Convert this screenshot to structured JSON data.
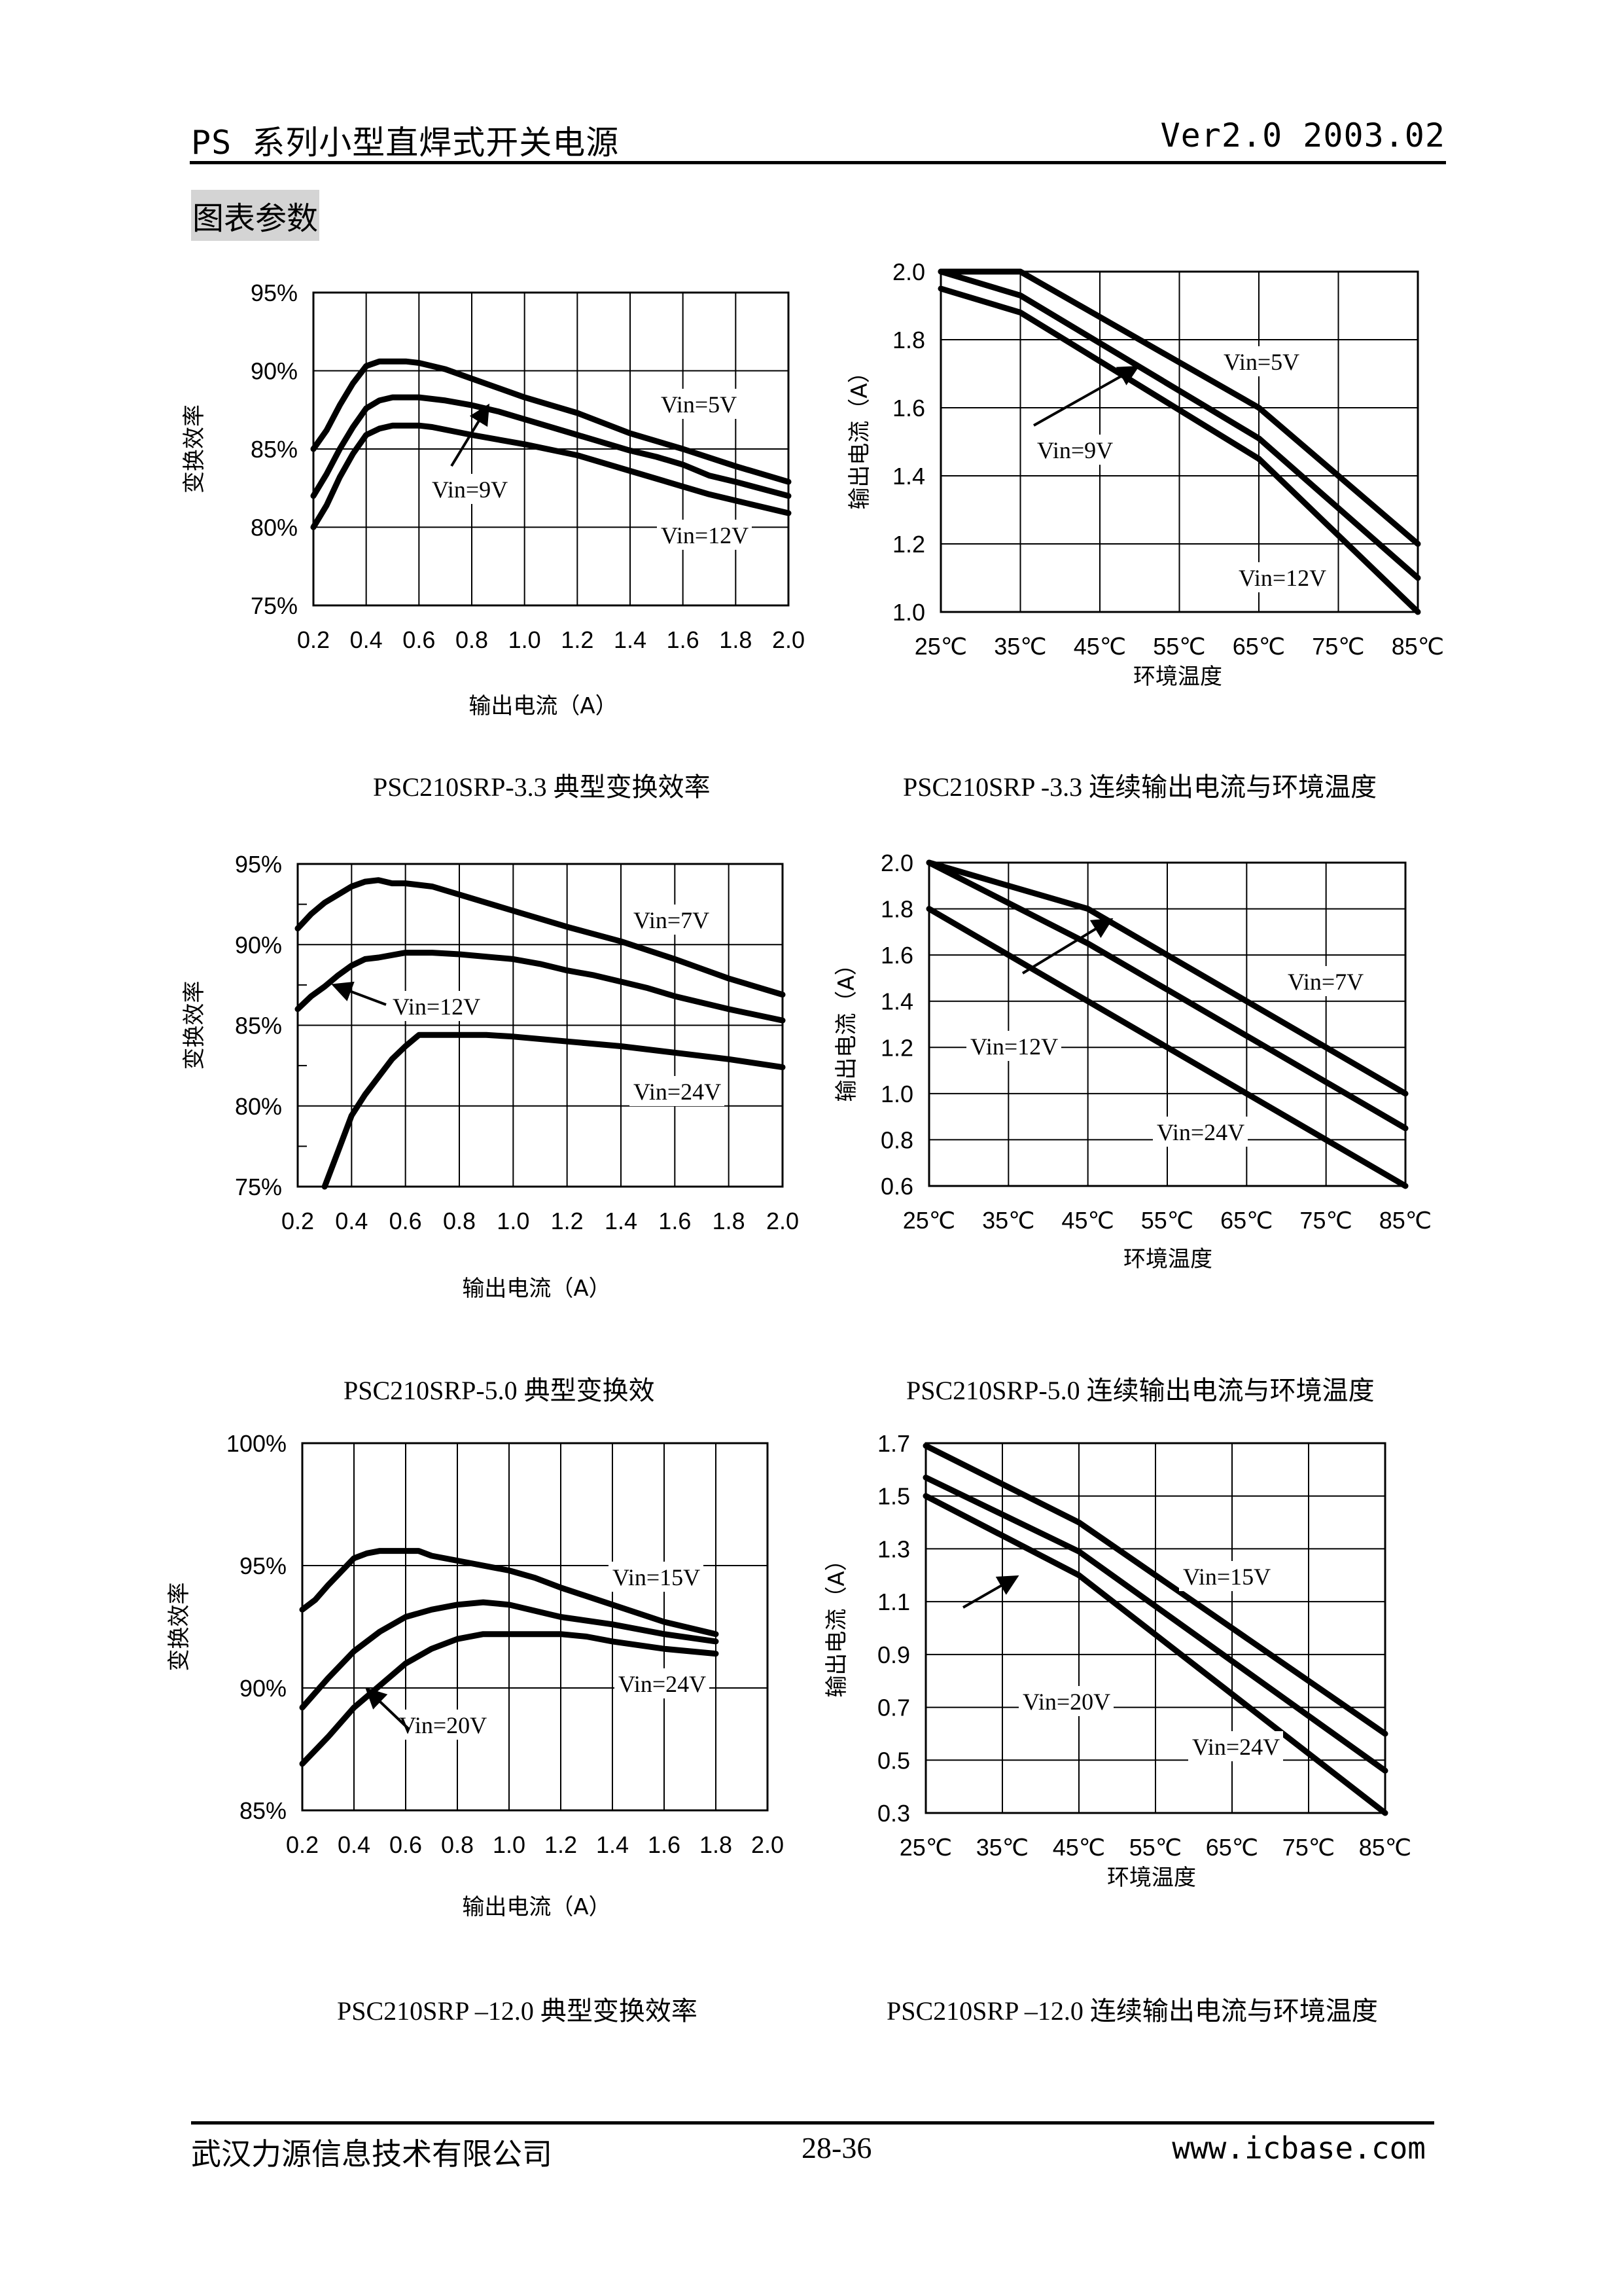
{
  "header": {
    "title": "PS 系列小型直焊式开关电源",
    "version": "Ver2.0 2003.02"
  },
  "section_title": "图表参数",
  "footer": {
    "company": "武汉力源信息技术有限公司",
    "page": "28-36",
    "website": "www.icbase.com"
  },
  "chart_data": [
    {
      "id": "eff-3v3",
      "type": "line",
      "title": "PSC210SRP-3.3 典型变换效率",
      "xlabel": "输出电流（A）",
      "ylabel": "变换效率",
      "xlim": [
        0.2,
        2.0
      ],
      "ylim": [
        75,
        95
      ],
      "xticks": [
        "0.2",
        "0.4",
        "0.6",
        "0.8",
        "1.0",
        "1.2",
        "1.4",
        "1.6",
        "1.8",
        "2.0"
      ],
      "yticks": [
        "75%",
        "80%",
        "85%",
        "90%",
        "95%"
      ],
      "grid": true,
      "series": [
        {
          "name": "Vin=5V",
          "x": [
            0.2,
            0.25,
            0.3,
            0.35,
            0.4,
            0.45,
            0.5,
            0.55,
            0.6,
            0.7,
            0.8,
            1.0,
            1.1,
            1.2,
            1.4,
            1.6,
            1.8,
            2.0
          ],
          "y": [
            85.0,
            86.2,
            87.8,
            89.2,
            90.3,
            90.6,
            90.6,
            90.6,
            90.5,
            90.1,
            89.5,
            88.3,
            87.8,
            87.3,
            86.0,
            85.0,
            83.9,
            82.9
          ]
        },
        {
          "name": "Vin=9V",
          "x": [
            0.2,
            0.25,
            0.3,
            0.35,
            0.4,
            0.45,
            0.5,
            0.6,
            0.7,
            0.8,
            0.9,
            1.0,
            1.2,
            1.4,
            1.5,
            1.6,
            1.7,
            1.8,
            2.0
          ],
          "y": [
            82.0,
            83.4,
            85.0,
            86.4,
            87.6,
            88.1,
            88.3,
            88.3,
            88.1,
            87.8,
            87.4,
            86.9,
            85.9,
            84.9,
            84.5,
            84.0,
            83.3,
            82.9,
            82.0
          ]
        },
        {
          "name": "Vin=12V",
          "x": [
            0.2,
            0.25,
            0.3,
            0.35,
            0.4,
            0.45,
            0.5,
            0.6,
            0.65,
            0.8,
            1.0,
            1.2,
            1.4,
            1.6,
            1.7,
            1.8,
            2.0
          ],
          "y": [
            80.0,
            81.4,
            83.2,
            84.7,
            85.9,
            86.3,
            86.5,
            86.5,
            86.4,
            85.9,
            85.3,
            84.6,
            83.6,
            82.6,
            82.1,
            81.7,
            80.9
          ]
        }
      ],
      "annotations": [
        {
          "text": "Vin=5V",
          "target": "Vin=5V"
        },
        {
          "text": "Vin=9V",
          "target": "Vin=9V",
          "arrow": true
        },
        {
          "text": "Vin=12V",
          "target": "Vin=12V"
        }
      ]
    },
    {
      "id": "derate-3v3",
      "type": "line",
      "title": "PSC210SRP -3.3 连续输出电流与环境温度",
      "xlabel": "环境温度",
      "ylabel": "输出电流（A）",
      "xlim": [
        25,
        85
      ],
      "ylim": [
        1.0,
        2.0
      ],
      "xticks": [
        "25℃",
        "35℃",
        "45℃",
        "55℃",
        "65℃",
        "75℃",
        "85℃"
      ],
      "yticks": [
        "1.0",
        "1.2",
        "1.4",
        "1.6",
        "1.8",
        "2.0"
      ],
      "grid": true,
      "series": [
        {
          "name": "Vin=5V",
          "x": [
            25,
            35,
            65,
            85
          ],
          "y": [
            2.0,
            2.0,
            1.6,
            1.2
          ]
        },
        {
          "name": "Vin=9V",
          "x": [
            25,
            35,
            65,
            85
          ],
          "y": [
            2.0,
            1.93,
            1.51,
            1.1
          ]
        },
        {
          "name": "Vin=12V",
          "x": [
            25,
            35,
            65,
            85
          ],
          "y": [
            1.95,
            1.88,
            1.45,
            1.0
          ]
        }
      ],
      "annotations": [
        {
          "text": "Vin=5V",
          "target": "Vin=5V"
        },
        {
          "text": "Vin=9V",
          "target": "Vin=9V",
          "arrow": true
        },
        {
          "text": "Vin=12V",
          "target": "Vin=12V"
        }
      ]
    },
    {
      "id": "eff-5v0",
      "type": "line",
      "title": "PSC210SRP-5.0  典型变换效",
      "xlabel": "输出电流（A）",
      "ylabel": "变换效率",
      "xlim": [
        0.2,
        2.0
      ],
      "ylim": [
        75,
        95
      ],
      "xticks": [
        "0.2",
        "0.4",
        "0.6",
        "0.8",
        "1.0",
        "1.2",
        "1.4",
        "1.6",
        "1.8",
        "2.0"
      ],
      "yticks": [
        "75%",
        "80%",
        "85%",
        "90%",
        "95%"
      ],
      "grid": true,
      "series": [
        {
          "name": "Vin=7V",
          "x": [
            0.2,
            0.25,
            0.3,
            0.4,
            0.45,
            0.5,
            0.55,
            0.6,
            0.7,
            0.8,
            0.9,
            1.0,
            1.2,
            1.4,
            1.6,
            1.7,
            1.8,
            2.0
          ],
          "y": [
            91.0,
            91.9,
            92.6,
            93.6,
            93.9,
            94.0,
            93.8,
            93.8,
            93.6,
            93.1,
            92.6,
            92.1,
            91.1,
            90.2,
            89.1,
            88.5,
            87.9,
            86.9
          ]
        },
        {
          "name": "Vin=12V",
          "x": [
            0.2,
            0.25,
            0.3,
            0.35,
            0.4,
            0.45,
            0.5,
            0.6,
            0.7,
            0.8,
            1.0,
            1.1,
            1.2,
            1.3,
            1.4,
            1.5,
            1.6,
            1.8,
            2.0
          ],
          "y": [
            86.0,
            86.8,
            87.4,
            88.1,
            88.7,
            89.1,
            89.2,
            89.5,
            89.5,
            89.4,
            89.1,
            88.8,
            88.4,
            88.1,
            87.7,
            87.3,
            86.8,
            86.0,
            85.3
          ]
        },
        {
          "name": "Vin=24V",
          "x": [
            0.3,
            0.35,
            0.4,
            0.45,
            0.5,
            0.55,
            0.6,
            0.65,
            0.7,
            0.9,
            1.0,
            1.2,
            1.4,
            1.6,
            1.8,
            2.0
          ],
          "y": [
            75.0,
            77.2,
            79.4,
            80.7,
            81.8,
            82.9,
            83.7,
            84.4,
            84.4,
            84.4,
            84.3,
            84.0,
            83.7,
            83.3,
            82.9,
            82.4
          ]
        }
      ],
      "annotations": [
        {
          "text": "Vin=7V",
          "target": "Vin=7V"
        },
        {
          "text": "Vin=12V",
          "target": "Vin=12V",
          "arrow": true
        },
        {
          "text": "Vin=24V",
          "target": "Vin=24V"
        }
      ]
    },
    {
      "id": "derate-5v0",
      "type": "line",
      "title": "PSC210SRP-5.0 连续输出电流与环境温度",
      "xlabel": "环境温度",
      "ylabel": "输出电流（A）",
      "xlim": [
        25,
        85
      ],
      "ylim": [
        0.6,
        2.0
      ],
      "xticks": [
        "25℃",
        "35℃",
        "45℃",
        "55℃",
        "65℃",
        "75℃",
        "85℃"
      ],
      "yticks": [
        "0.6",
        "0.8",
        "1.0",
        "1.2",
        "1.4",
        "1.6",
        "1.8",
        "2.0"
      ],
      "grid": true,
      "series": [
        {
          "name": "Vin=7V",
          "x": [
            25,
            45,
            85
          ],
          "y": [
            2.0,
            1.8,
            1.0
          ]
        },
        {
          "name": "Vin=12V",
          "x": [
            25,
            45,
            85
          ],
          "y": [
            2.0,
            1.65,
            0.85
          ]
        },
        {
          "name": "Vin=24V",
          "x": [
            25,
            85
          ],
          "y": [
            1.8,
            0.6
          ]
        }
      ],
      "annotations": [
        {
          "text": "Vin=7V",
          "target": "Vin=7V"
        },
        {
          "text": "Vin=12V",
          "target": "Vin=12V",
          "arrow": true
        },
        {
          "text": "Vin=24V",
          "target": "Vin=24V"
        }
      ]
    },
    {
      "id": "eff-12v0",
      "type": "line",
      "title": "PSC210SRP –12.0 典型变换效率",
      "xlabel": "输出电流（A）",
      "ylabel": "变换效率",
      "xlim": [
        0.2,
        2.0
      ],
      "ylim": [
        85,
        100
      ],
      "xticks": [
        "0.2",
        "0.4",
        "0.6",
        "0.8",
        "1.0",
        "1.2",
        "1.4",
        "1.6",
        "1.8",
        "2.0"
      ],
      "yticks": [
        "85%",
        "90%",
        "95%",
        "100%"
      ],
      "grid": true,
      "series": [
        {
          "name": "Vin=15V",
          "x": [
            0.2,
            0.25,
            0.3,
            0.4,
            0.45,
            0.5,
            0.6,
            0.65,
            0.7,
            0.8,
            1.0,
            1.1,
            1.2,
            1.4,
            1.6,
            1.8
          ],
          "y": [
            93.2,
            93.6,
            94.2,
            95.3,
            95.5,
            95.6,
            95.6,
            95.6,
            95.4,
            95.2,
            94.8,
            94.5,
            94.1,
            93.4,
            92.7,
            92.2
          ]
        },
        {
          "name": "Vin=20V",
          "x": [
            0.2,
            0.3,
            0.4,
            0.5,
            0.6,
            0.7,
            0.8,
            0.9,
            1.0,
            1.2,
            1.4,
            1.6,
            1.8
          ],
          "y": [
            89.2,
            90.4,
            91.5,
            92.3,
            92.9,
            93.2,
            93.4,
            93.5,
            93.4,
            92.9,
            92.6,
            92.2,
            91.9
          ]
        },
        {
          "name": "Vin=24V",
          "x": [
            0.2,
            0.3,
            0.4,
            0.5,
            0.6,
            0.7,
            0.8,
            0.9,
            1.0,
            1.2,
            1.3,
            1.4,
            1.6,
            1.8
          ],
          "y": [
            86.9,
            88.0,
            89.2,
            90.1,
            91.0,
            91.6,
            92.0,
            92.2,
            92.2,
            92.2,
            92.1,
            91.9,
            91.6,
            91.4
          ]
        }
      ],
      "annotations": [
        {
          "text": "Vin=15V",
          "target": "Vin=15V"
        },
        {
          "text": "Vin=20V",
          "target": "Vin=20V",
          "arrow": true
        },
        {
          "text": "Vin=24V",
          "target": "Vin=24V"
        }
      ]
    },
    {
      "id": "derate-12v0",
      "type": "line",
      "title": "PSC210SRP –12.0 连续输出电流与环境温度",
      "xlabel": "环境温度",
      "ylabel": "输出电流（A）",
      "xlim": [
        25,
        85
      ],
      "ylim": [
        0.3,
        1.7
      ],
      "xticks": [
        "25℃",
        "35℃",
        "45℃",
        "55℃",
        "65℃",
        "75℃",
        "85℃"
      ],
      "yticks": [
        "0.3",
        "0.5",
        "0.7",
        "0.9",
        "1.1",
        "1.3",
        "1.5",
        "1.7"
      ],
      "grid": true,
      "series": [
        {
          "name": "Vin=15V",
          "x": [
            25,
            45,
            85
          ],
          "y": [
            1.69,
            1.4,
            0.6
          ]
        },
        {
          "name": "Vin=20V",
          "x": [
            25,
            45,
            85
          ],
          "y": [
            1.57,
            1.29,
            0.46
          ]
        },
        {
          "name": "Vin=24V",
          "x": [
            25,
            45,
            85
          ],
          "y": [
            1.5,
            1.2,
            0.3
          ]
        }
      ],
      "annotations": [
        {
          "text": "Vin=15V",
          "target": "Vin=15V"
        },
        {
          "text": "Vin=20V",
          "target": "Vin=20V",
          "arrow": true
        },
        {
          "text": "Vin=24V",
          "target": "Vin=24V"
        }
      ]
    }
  ]
}
